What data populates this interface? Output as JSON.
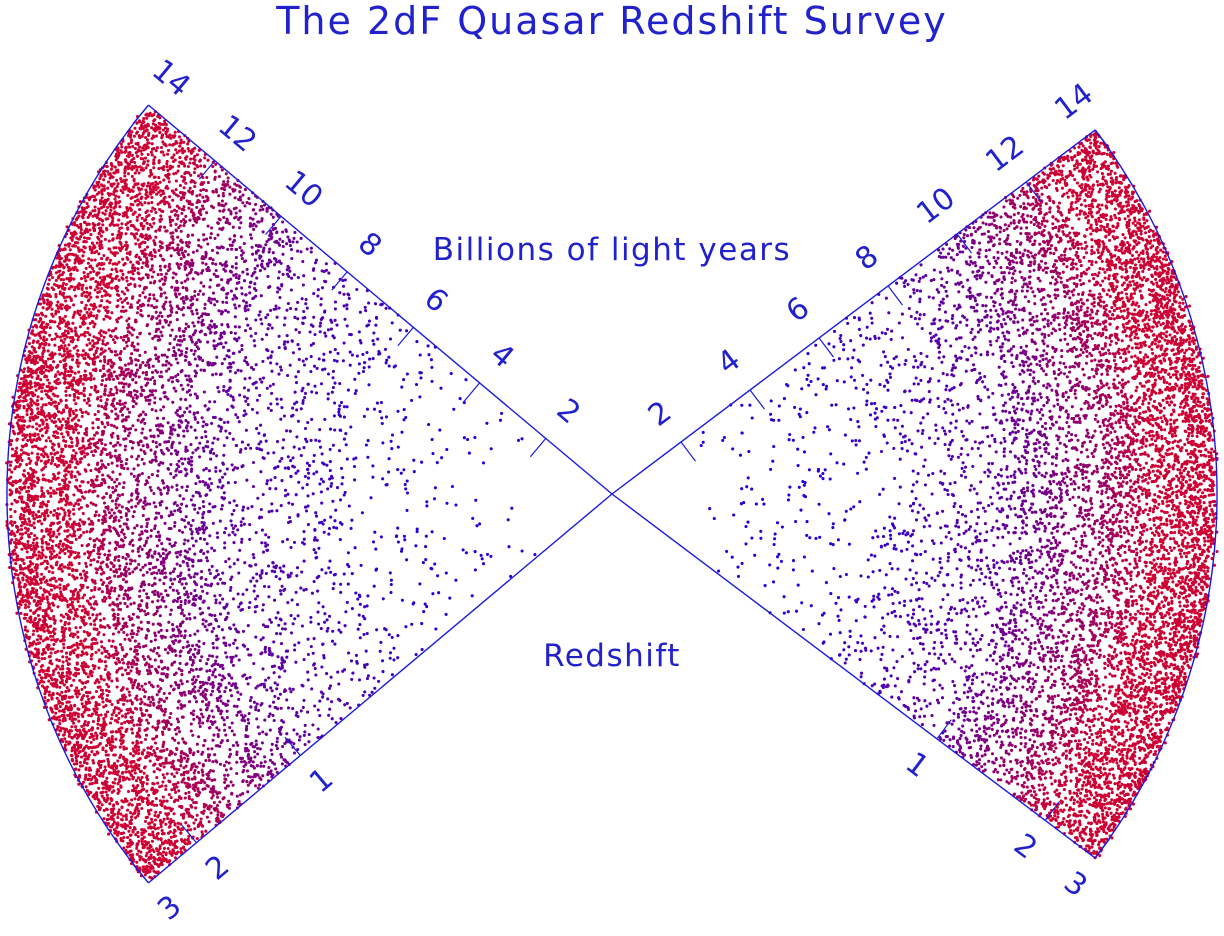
{
  "chart_data": {
    "type": "scatter",
    "title": "The 2dF Quasar Redshift Survey",
    "distance_axis_label": "Billions of light years",
    "redshift_axis_label": "Redshift",
    "distance_ticks": [
      "2",
      "4",
      "6",
      "8",
      "10",
      "12",
      "14"
    ],
    "distance_tick_values": [
      2,
      4,
      6,
      8,
      10,
      12,
      14
    ],
    "redshift_ticks": [
      "1",
      "2",
      "3"
    ],
    "redshift_tick_values": [
      1,
      2,
      3
    ],
    "distance_range_gly": [
      0,
      14
    ],
    "redshift_range": [
      0,
      3
    ],
    "wedges": [
      {
        "side": "left",
        "quasar_count_shown": 9500
      },
      {
        "side": "right",
        "quasar_count_shown": 9500
      }
    ],
    "marker_colors": {
      "near": "#2200dd",
      "far": "#cc0033"
    },
    "frame_color": "#1a1adf",
    "grid": false,
    "legend": "none"
  }
}
